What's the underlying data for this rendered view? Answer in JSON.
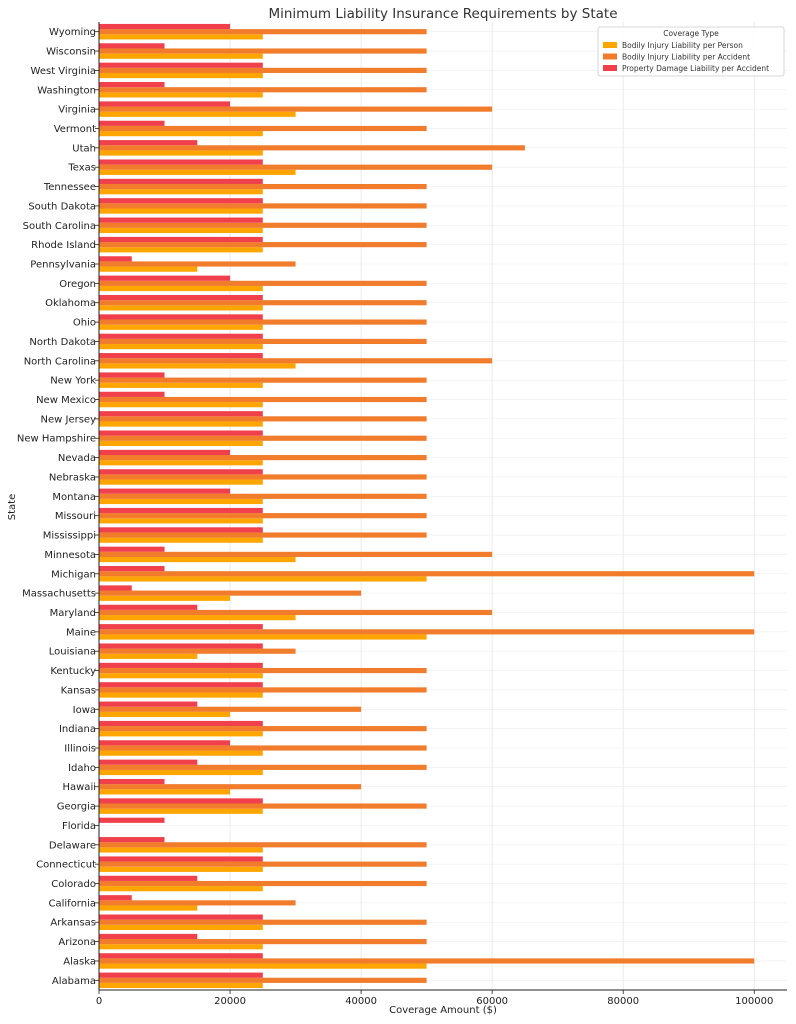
{
  "chart_data": {
    "type": "bar",
    "orientation": "horizontal",
    "title": "Minimum Liability Insurance Requirements by State",
    "xlabel": "Coverage Amount ($)",
    "ylabel": "State",
    "xlim": [
      0,
      105000
    ],
    "xticks": [
      0,
      20000,
      40000,
      60000,
      80000,
      100000
    ],
    "xtick_labels": [
      "0",
      "20000",
      "40000",
      "60000",
      "80000",
      "100000"
    ],
    "grid": true,
    "legend": {
      "title": "Coverage Type",
      "placement": "top-right"
    },
    "categories": [
      "Alabama",
      "Alaska",
      "Arizona",
      "Arkansas",
      "California",
      "Colorado",
      "Connecticut",
      "Delaware",
      "Florida",
      "Georgia",
      "Hawaii",
      "Idaho",
      "Illinois",
      "Indiana",
      "Iowa",
      "Kansas",
      "Kentucky",
      "Louisiana",
      "Maine",
      "Maryland",
      "Massachusetts",
      "Michigan",
      "Minnesota",
      "Mississippi",
      "Missouri",
      "Montana",
      "Nebraska",
      "Nevada",
      "New Hampshire",
      "New Jersey",
      "New Mexico",
      "New York",
      "North Carolina",
      "North Dakota",
      "Ohio",
      "Oklahoma",
      "Oregon",
      "Pennsylvania",
      "Rhode Island",
      "South Carolina",
      "South Dakota",
      "Tennessee",
      "Texas",
      "Utah",
      "Vermont",
      "Virginia",
      "Washington",
      "West Virginia",
      "Wisconsin",
      "Wyoming"
    ],
    "series": [
      {
        "name": "Bodily Injury Liability per Person",
        "color": "#FFA500",
        "values": [
          25000,
          50000,
          25000,
          25000,
          15000,
          25000,
          25000,
          25000,
          0,
          25000,
          20000,
          25000,
          25000,
          25000,
          20000,
          25000,
          25000,
          15000,
          50000,
          30000,
          20000,
          50000,
          30000,
          25000,
          25000,
          25000,
          25000,
          25000,
          25000,
          25000,
          25000,
          25000,
          30000,
          25000,
          25000,
          25000,
          25000,
          15000,
          25000,
          25000,
          25000,
          25000,
          30000,
          25000,
          25000,
          30000,
          25000,
          25000,
          25000,
          25000
        ]
      },
      {
        "name": "Bodily Injury Liability per Accident",
        "color": "#F07C2C",
        "values": [
          50000,
          100000,
          50000,
          50000,
          30000,
          50000,
          50000,
          50000,
          0,
          50000,
          40000,
          50000,
          50000,
          50000,
          40000,
          50000,
          50000,
          30000,
          100000,
          60000,
          40000,
          100000,
          60000,
          50000,
          50000,
          50000,
          50000,
          50000,
          50000,
          50000,
          50000,
          50000,
          60000,
          50000,
          50000,
          50000,
          50000,
          30000,
          50000,
          50000,
          50000,
          50000,
          60000,
          65000,
          50000,
          60000,
          50000,
          50000,
          50000,
          50000
        ]
      },
      {
        "name": "Property Damage Liability per Accident",
        "color": "#F0404C",
        "values": [
          25000,
          25000,
          15000,
          25000,
          5000,
          15000,
          25000,
          10000,
          10000,
          25000,
          10000,
          15000,
          20000,
          25000,
          15000,
          25000,
          25000,
          25000,
          25000,
          15000,
          5000,
          10000,
          10000,
          25000,
          25000,
          20000,
          25000,
          20000,
          25000,
          25000,
          10000,
          10000,
          25000,
          25000,
          25000,
          25000,
          20000,
          5000,
          25000,
          25000,
          25000,
          25000,
          25000,
          15000,
          10000,
          20000,
          10000,
          25000,
          10000,
          20000
        ]
      }
    ]
  }
}
